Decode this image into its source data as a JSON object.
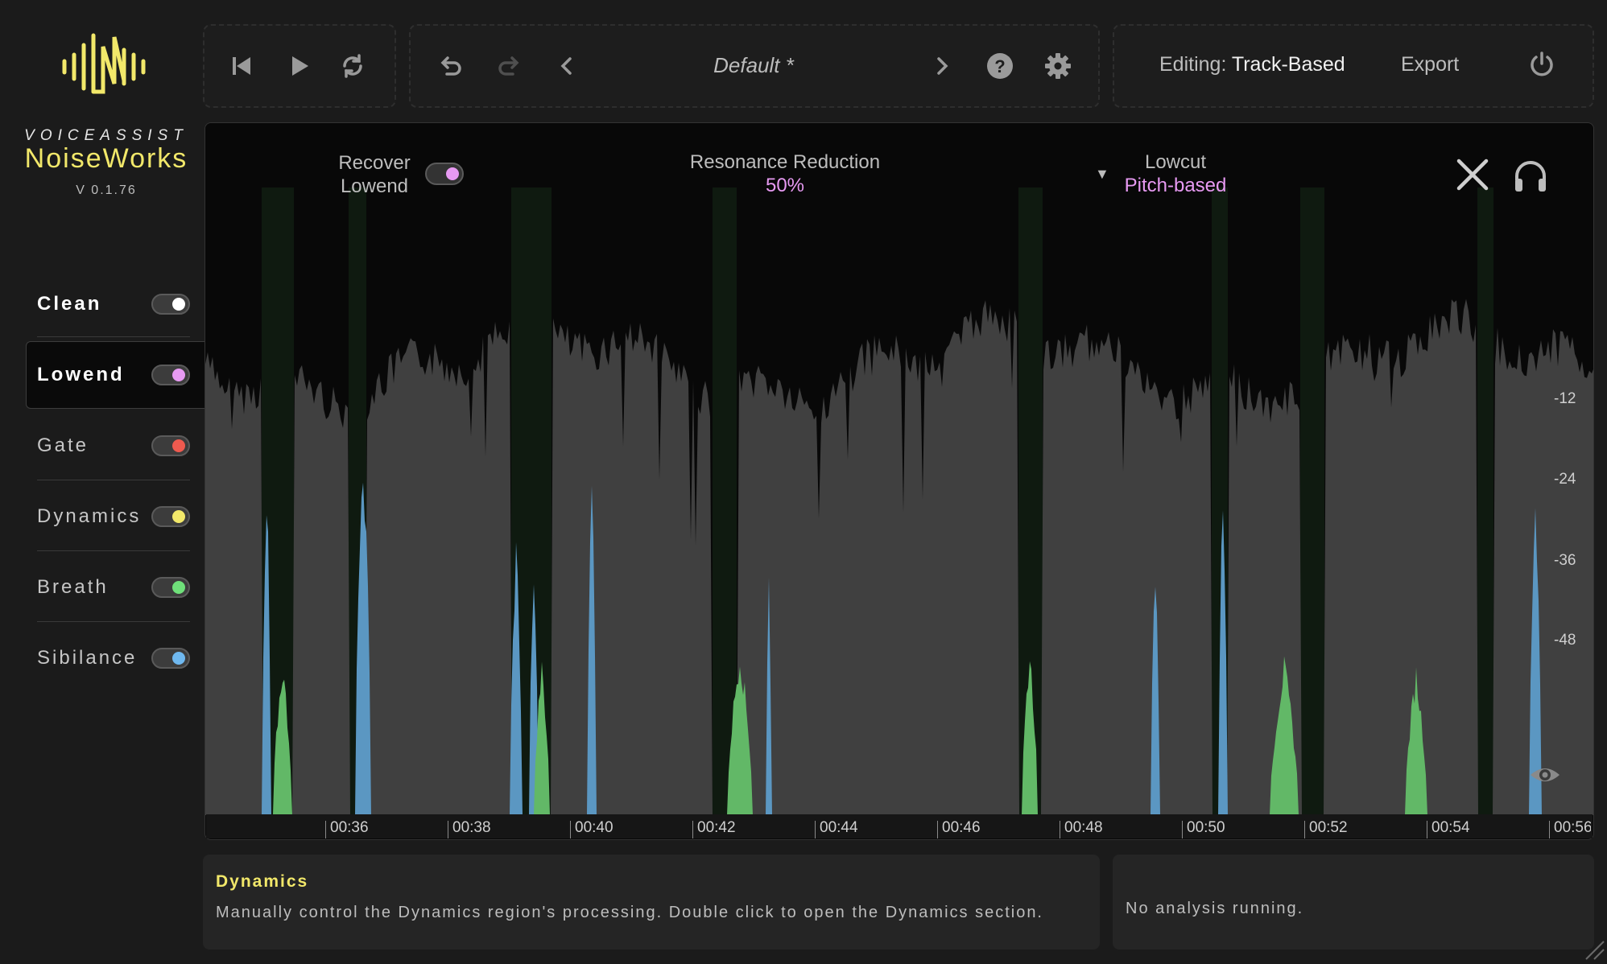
{
  "brand": {
    "company": "VOICEASSIST",
    "product": "NoiseWorks",
    "version": "V 0.1.76",
    "logo_icon": "waveform-logo-icon"
  },
  "modes": [
    {
      "label": "Clean",
      "dot_color": "#ffffff",
      "active": false
    },
    {
      "label": "Lowend",
      "dot_color": "#e79af2",
      "active": true
    },
    {
      "label": "Gate",
      "dot_color": "#ee5a4f",
      "active": false
    },
    {
      "label": "Dynamics",
      "dot_color": "#f2e86a",
      "active": false
    },
    {
      "label": "Breath",
      "dot_color": "#6fe07a",
      "active": false
    },
    {
      "label": "Sibilance",
      "dot_color": "#6fb8ef",
      "active": false
    }
  ],
  "toolbar": {
    "transport_icons": [
      "skip-back-icon",
      "play-icon",
      "loop-icon"
    ],
    "edit_icons": [
      "undo-icon",
      "redo-icon",
      "prev-preset-icon"
    ],
    "preset_name": "Default *",
    "right_icons": [
      "next-preset-icon",
      "help-icon",
      "settings-icon"
    ],
    "editing_prefix": "Editing:",
    "editing_mode": "Track-Based",
    "export_label": "Export",
    "power_icon": "power-icon"
  },
  "controls": {
    "recover_label_1": "Recover",
    "recover_label_2": "Lowend",
    "recover_enabled": true,
    "resonance_label": "Resonance Reduction",
    "resonance_value": "50%",
    "lowcut_label": "Lowcut",
    "lowcut_value": "Pitch-based"
  },
  "colors": {
    "accent_pink": "#e79af2",
    "accent_yellow": "#f2e86a",
    "breath_green": "#62b867",
    "sibilance_blue": "#5b97c2",
    "waveform_gray": "#404040"
  },
  "db_scale": [
    "-12",
    "-24",
    "-36",
    "-48"
  ],
  "timeline": [
    "00:36",
    "00:38",
    "00:40",
    "00:42",
    "00:44",
    "00:46",
    "00:48",
    "00:50",
    "00:52",
    "00:54",
    "00:56"
  ],
  "info": {
    "title": "Dynamics",
    "text": "Manually control the Dynamics region's processing. Double click to open the Dynamics section."
  },
  "status": {
    "text": "No analysis running."
  }
}
